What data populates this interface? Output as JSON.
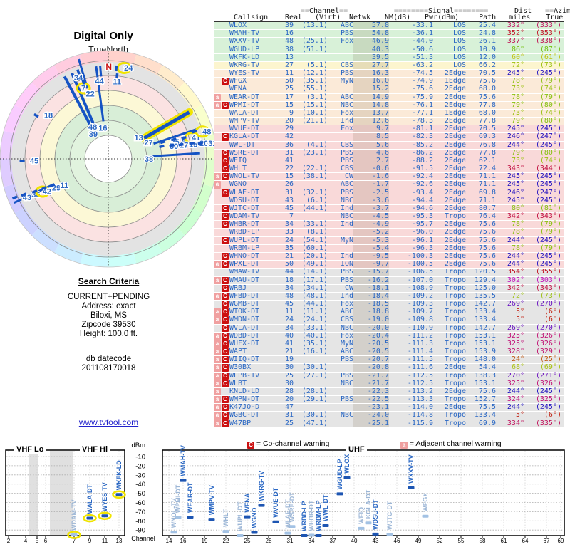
{
  "radar": {
    "title": "Digital Only",
    "north_label": "TrueNorth",
    "north_letter": "N"
  },
  "criteria": {
    "heading": "Search Criteria",
    "lines": [
      "CURRENT+PENDING",
      "Address: exact",
      "Biloxi, MS",
      "Zipcode 39530",
      "Height: 100.0 ft."
    ],
    "db_label": "db datecode",
    "db_value": "201108170018"
  },
  "link": "www.tvfool.com",
  "legend": {
    "co_badge": "C",
    "co_text": "= Co-channel warning",
    "adj_badge": "a",
    "adj_text": "= Adjacent channel warning"
  },
  "colors": {
    "accent_blue": "#2b68c4",
    "bar_blue": "#1d55b2",
    "pale_blue": "#a3c2e4",
    "pale_label": "#9cb6d6",
    "yellow_hl": "#f0e400",
    "warn_red": "#cc1111",
    "warn_pink": "#f0a0a0",
    "link_blue": "#2222cc",
    "line_blue": "#1553c4"
  },
  "table": {
    "header1": {
      "channel_eq": "==",
      "channel": "Channel",
      "channel_eq2": "==",
      "signal_eq": "========",
      "signal": "Signal",
      "signal_eq2": "========",
      "dist": "Dist",
      "azimuth_eq": "==",
      "azimuth": "Azimuth",
      "azimuth_eq2": "=="
    },
    "header2": {
      "callsign": "Callsign",
      "real": "Real",
      "virt": "(Virt)",
      "netwk": "Netwk",
      "nm": "NM(dB)",
      "pwr": "Pwr(dBm)",
      "path": "Path",
      "miles": "miles",
      "true": "True",
      "magn": "(Magn)"
    },
    "rows": [
      [
        "",
        "WLOX",
        39,
        "(13.1)",
        "ABC",
        57.8,
        -33.1,
        "LOS",
        25.4,
        332,
        333
      ],
      [
        "",
        "WMAH-TV",
        16,
        "",
        "PBS",
        54.8,
        -36.1,
        "LOS",
        24.8,
        352,
        353
      ],
      [
        "",
        "WXXV-TV",
        48,
        "(25.1)",
        "Fox",
        46.9,
        -44.0,
        "LOS",
        26.1,
        337,
        338
      ],
      [
        "",
        "WGUD-LP",
        38,
        "(51.1)",
        "",
        40.3,
        -50.6,
        "LOS",
        10.9,
        86,
        87
      ],
      [
        "",
        "WKFK-LD",
        13,
        "",
        "",
        39.5,
        -51.3,
        "LOS",
        12.0,
        60,
        61
      ],
      [
        "",
        "WKRG-TV",
        27,
        "(5.1)",
        "CBS",
        27.7,
        -63.2,
        "LOS",
        66.2,
        72,
        73
      ],
      [
        "",
        "WYES-TV",
        11,
        "(12.1)",
        "PBS",
        16.3,
        -74.5,
        "2Edge",
        70.5,
        245,
        245
      ],
      [
        "C",
        "WFGX",
        50,
        "(35.1)",
        "MyN",
        16.0,
        -74.9,
        "1Edge",
        75.6,
        78,
        79
      ],
      [
        "",
        "WFNA",
        25,
        "(55.1)",
        "",
        15.2,
        -75.6,
        "2Edge",
        68.0,
        73,
        74
      ],
      [
        "a",
        "WEAR-DT",
        17,
        "(3.1)",
        "ABC",
        14.9,
        -75.9,
        "2Edge",
        75.6,
        78,
        79
      ],
      [
        "aC",
        "WPMI-DT",
        15,
        "(15.1)",
        "NBC",
        14.8,
        -76.1,
        "2Edge",
        77.8,
        79,
        80
      ],
      [
        "",
        "WALA-DT",
        9,
        "(10.1)",
        "Fox",
        13.7,
        -77.1,
        "1Edge",
        68.0,
        73,
        74
      ],
      [
        "",
        "WMPV-TV",
        20,
        "(21.1)",
        "Ind",
        12.6,
        -78.3,
        "2Edge",
        77.8,
        79,
        80
      ],
      [
        "",
        "WVUE-DT",
        29,
        "",
        "Fox",
        9.7,
        -81.1,
        "2Edge",
        70.5,
        245,
        245
      ],
      [
        "C",
        "KGLA-DT",
        42,
        "",
        "",
        8.5,
        -82.3,
        "2Edge",
        69.3,
        246,
        247
      ],
      [
        "",
        "WWL-DT",
        36,
        "(4.1)",
        "CBS",
        5.6,
        -85.2,
        "2Edge",
        76.8,
        244,
        245
      ],
      [
        "C",
        "WSRE-DT",
        31,
        "(23.1)",
        "PBS",
        4.6,
        -86.2,
        "2Edge",
        77.8,
        79,
        80
      ],
      [
        "C",
        "WEIQ",
        41,
        "",
        "PBS",
        2.7,
        -88.2,
        "2Edge",
        62.1,
        73,
        74
      ],
      [
        "C",
        "WHLT",
        22,
        "(22.1)",
        "CBS",
        -0.6,
        -91.5,
        "2Edge",
        72.4,
        343,
        344
      ],
      [
        "aC",
        "WNOL-TV",
        15,
        "(38.1)",
        "CW",
        -1.6,
        -92.4,
        "2Edge",
        71.1,
        245,
        245
      ],
      [
        "a",
        "WGNO",
        26,
        "",
        "ABC",
        -1.7,
        -92.6,
        "2Edge",
        71.1,
        245,
        245
      ],
      [
        "C",
        "WLAE-DT",
        31,
        "(32.1)",
        "PBS",
        -2.5,
        -93.4,
        "2Edge",
        69.8,
        246,
        247
      ],
      [
        "",
        "WDSU-DT",
        43,
        "(6.1)",
        "NBC",
        -3.6,
        -94.4,
        "2Edge",
        71.1,
        245,
        245
      ],
      [
        "C",
        "WJTC-DT",
        45,
        "(44.1)",
        "Ind",
        -3.7,
        -94.6,
        "2Edge",
        80.7,
        80,
        81
      ],
      [
        "C",
        "WDAM-TV",
        7,
        "",
        "NBC",
        -4.5,
        -95.3,
        "Tropo",
        76.4,
        342,
        343
      ],
      [
        "C",
        "WHBR-DT",
        34,
        "(33.1)",
        "Ind",
        -4.9,
        -95.7,
        "2Edge",
        75.6,
        78,
        79
      ],
      [
        "",
        "WRBD-LP",
        33,
        "(8.1)",
        "",
        -5.2,
        -96.0,
        "2Edge",
        75.6,
        78,
        79
      ],
      [
        "C",
        "WUPL-DT",
        24,
        "(54.1)",
        "MyN",
        -5.3,
        -96.1,
        "2Edge",
        75.6,
        244,
        245
      ],
      [
        "",
        "WRBM-LP",
        35,
        "(60.1)",
        "",
        -5.4,
        -96.3,
        "2Edge",
        75.6,
        78,
        79
      ],
      [
        "C",
        "WHNO-DT",
        21,
        "(20.1)",
        "Ind",
        -9.5,
        -100.3,
        "2Edge",
        75.6,
        244,
        245
      ],
      [
        "aC",
        "WPXL-DT",
        50,
        "(49.1)",
        "ION",
        -9.7,
        -100.5,
        "2Edge",
        75.6,
        244,
        245
      ],
      [
        "",
        "WMAW-TV",
        44,
        "(14.1)",
        "PBS",
        -15.7,
        -106.5,
        "Tropo",
        120.5,
        354,
        355
      ],
      [
        "aC",
        "WMAU-DT",
        18,
        "(17.1)",
        "PBS",
        -16.2,
        -107.0,
        "Tropo",
        129.4,
        302,
        303
      ],
      [
        "C",
        "WRBJ",
        34,
        "(34.1)",
        "CW",
        -18.1,
        -108.9,
        "Tropo",
        125.0,
        342,
        343
      ],
      [
        "aC",
        "WFBD-DT",
        48,
        "(48.1)",
        "Ind",
        -18.4,
        -109.2,
        "Tropo",
        135.5,
        72,
        73
      ],
      [
        "C",
        "WGMB-DT",
        45,
        "(44.1)",
        "Fox",
        -18.5,
        -109.3,
        "Tropo",
        142.7,
        269,
        270
      ],
      [
        "aC",
        "WTOK-DT",
        11,
        "(11.1)",
        "ABC",
        -18.8,
        -109.7,
        "Tropo",
        133.4,
        5,
        6
      ],
      [
        "aC",
        "WMDN-DT",
        24,
        "(24.1)",
        "CBS",
        -19.0,
        -109.8,
        "Tropo",
        133.4,
        5,
        6
      ],
      [
        "C",
        "WVLA-DT",
        34,
        "(33.1)",
        "NBC",
        -20.0,
        -110.9,
        "Tropo",
        142.7,
        269,
        270
      ],
      [
        "aC",
        "WDBD-DT",
        40,
        "(40.1)",
        "Fox",
        -20.4,
        -111.2,
        "Tropo",
        153.1,
        325,
        326
      ],
      [
        "aC",
        "WUFX-DT",
        41,
        "(35.1)",
        "MyN",
        -20.5,
        -111.3,
        "Tropo",
        153.1,
        325,
        326
      ],
      [
        "aC",
        "WAPT",
        21,
        "(16.1)",
        "ABC",
        -20.5,
        -111.4,
        "Tropo",
        153.9,
        328,
        329
      ],
      [
        "aC",
        "WIIQ-DT",
        19,
        "",
        "PBS",
        -20.7,
        -111.5,
        "Tropo",
        148.0,
        24,
        25
      ],
      [
        "aC",
        "W30BX",
        30,
        "(30.1)",
        "",
        -20.8,
        -111.6,
        "2Edge",
        54.4,
        68,
        69
      ],
      [
        "aC",
        "WLPB-TV",
        25,
        "(27.1)",
        "PBS",
        -21.7,
        -112.5,
        "Tropo",
        138.3,
        270,
        271
      ],
      [
        "aC",
        "WLBT",
        30,
        "",
        "NBC",
        -21.7,
        -112.5,
        "Tropo",
        153.1,
        325,
        326
      ],
      [
        "a",
        "KNLD-LD",
        28,
        "(28.1)",
        "",
        -22.3,
        -113.2,
        "2Edge",
        75.6,
        244,
        245
      ],
      [
        "aC",
        "WMPN-DT",
        20,
        "(29.1)",
        "PBS",
        -22.5,
        -113.3,
        "Tropo",
        152.7,
        324,
        325
      ],
      [
        "aC",
        "K47JO-D",
        47,
        "",
        "",
        -23.1,
        -114.0,
        "2Edge",
        75.5,
        244,
        245
      ],
      [
        "aC",
        "WGBC-DT",
        31,
        "(30.1)",
        "NBC",
        -24.0,
        -114.8,
        "Tropo",
        133.4,
        5,
        6
      ],
      [
        "aC",
        "W47BP",
        25,
        "(47.1)",
        "",
        -25.1,
        -115.9,
        "Tropo",
        69.9,
        334,
        335
      ]
    ]
  },
  "chart_data": {
    "radar": {
      "type": "polar-lines",
      "title": "Digital Only",
      "orientation_label": "TrueNorth",
      "lines": [
        {
          "ch": "39",
          "az": 332,
          "r1": 131,
          "r2": 50,
          "w": 4,
          "la": 329,
          "lr": 41
        },
        {
          "ch": "48",
          "az": 337,
          "r1": 131,
          "r2": 52,
          "w": 4,
          "la": 334,
          "lr": 50
        },
        {
          "ch": "16",
          "az": 352.5,
          "r1": 131,
          "r2": 53,
          "w": 3,
          "la": 350,
          "lr": 44
        },
        {
          "ch": "44",
          "az": 355,
          "r1": 131,
          "r2": 116,
          "w": 3,
          "la": 353.5,
          "lr": 110
        },
        {
          "ch": "13",
          "az": 60,
          "r1": 131,
          "r2": 58,
          "w": 5,
          "yellow": true,
          "la": 55,
          "lr": 52
        },
        {
          "ch": "27",
          "az": 71.5,
          "r1": 131,
          "r2": 67,
          "w": 3,
          "la": 68,
          "lr": 61
        },
        {
          "ch": "38",
          "az": 86.5,
          "r1": 129,
          "r2": 59,
          "w": 3,
          "la": 90,
          "lr": 57
        },
        {
          "ch": "22",
          "az": 343.5,
          "r1": 146,
          "r2": 103,
          "w": 3,
          "la": 344.5,
          "lr": 95
        },
        {
          "ch": "",
          "az": 245,
          "r1": 146,
          "r2": 84,
          "w": 3
        }
      ],
      "ticks": [
        {
          "ch": "34",
          "az": 341,
          "r": 129,
          "side": "n"
        },
        {
          "ch": "7",
          "az": 342,
          "r": 113,
          "side": "n",
          "yellow": true
        },
        {
          "ch": "24",
          "az": 5,
          "r": 128,
          "side": "e",
          "yellow": true
        },
        {
          "ch": "11",
          "az": 6,
          "r": 117,
          "side": "n"
        },
        {
          "ch": "45",
          "az": 268.5,
          "r": 121,
          "side": "e"
        },
        {
          "ch": "18",
          "az": 301,
          "r": 118,
          "side": "e"
        },
        {
          "ch": "25",
          "az": 73,
          "r": 80,
          "side": "e"
        },
        {
          "ch": "9",
          "az": 73.5,
          "r": 96,
          "side": "e"
        },
        {
          "ch": "41",
          "az": 74.5,
          "r": 110,
          "side": "e",
          "yellow": true
        },
        {
          "ch": "48",
          "az": 72.5,
          "r": 127,
          "side": "e",
          "yellow": true
        },
        {
          "ch": "50",
          "az": 77,
          "r": 77,
          "side": "e"
        },
        {
          "ch": "17",
          "az": 78,
          "r": 91,
          "side": "e"
        },
        {
          "ch": "15",
          "az": 79,
          "r": 104,
          "side": "e"
        },
        {
          "ch": "20",
          "az": 79.5,
          "r": 119,
          "side": "e"
        },
        {
          "ch": "31",
          "az": 80.5,
          "r": 131,
          "side": "e"
        },
        {
          "ch": "43",
          "az": 247.5,
          "r": 142,
          "side": "e"
        },
        {
          "ch": "36",
          "az": 247,
          "r": 129,
          "side": "e"
        },
        {
          "ch": "42",
          "az": 246,
          "r": 113,
          "side": "e",
          "yellow": true
        },
        {
          "ch": "29",
          "az": 245.5,
          "r": 99,
          "side": "e"
        },
        {
          "ch": "11",
          "az": 244.5,
          "r": 87,
          "side": "e"
        }
      ]
    },
    "dbm_ticks": [
      -10,
      -20,
      -30,
      -40,
      -50,
      -60,
      -70,
      -80,
      -90
    ],
    "ylabel": "dBm",
    "xlabel": "Channel",
    "vhf": {
      "type": "spectrum",
      "band_titles": [
        "VHF Lo",
        "VHF Hi"
      ],
      "xticks": [
        2,
        4,
        5,
        6,
        7,
        9,
        11,
        13
      ],
      "stations": [
        {
          "ch": 7,
          "call": "WDAM-TV",
          "pwr": -95.3,
          "pale": true,
          "hl": true
        },
        {
          "ch": 9,
          "call": "WALA-DT",
          "pwr": -77.1,
          "hl": true
        },
        {
          "ch": 11,
          "call": "WYES-TV",
          "pwr": -74.5,
          "hl": true
        },
        {
          "ch": 13,
          "call": "WKFK-LD",
          "pwr": -51.3,
          "hl": true
        }
      ]
    },
    "uhf": {
      "type": "spectrum",
      "title": "UHF",
      "xticks": [
        14,
        16,
        19,
        22,
        25,
        28,
        31,
        34,
        37,
        40,
        43,
        46,
        49,
        52,
        55,
        58,
        61,
        64,
        67,
        69
      ],
      "stations": [
        {
          "ch": 15,
          "call": "WPMI-DT",
          "pwr": -76.1,
          "pale": true,
          "dx": 3
        },
        {
          "ch": 15,
          "call": "WNOL-TV",
          "pwr": -92.4,
          "pale": true,
          "dx": -3
        },
        {
          "ch": 16,
          "call": "WMAH-TV",
          "pwr": -36.1
        },
        {
          "ch": 17,
          "call": "WEAR-DT",
          "pwr": -75.9
        },
        {
          "ch": 20,
          "call": "WMPV-TV",
          "pwr": -78.3
        },
        {
          "ch": 22,
          "call": "WHLT",
          "pwr": -91.5,
          "pale": true
        },
        {
          "ch": 24,
          "call": "WUPL-DT",
          "pwr": -96.1,
          "pale": true
        },
        {
          "ch": 25,
          "call": "WFNA",
          "pwr": -75.6
        },
        {
          "ch": 26,
          "call": "WGNO",
          "pwr": -92.6
        },
        {
          "ch": 27,
          "call": "WKRG-TV",
          "pwr": -63.2
        },
        {
          "ch": 29,
          "call": "WVUE-DT",
          "pwr": -81.1
        },
        {
          "ch": 31,
          "call": "WSRE-DT",
          "pwr": -86.2,
          "pale": true,
          "dx": 3
        },
        {
          "ch": 31,
          "call": "WLAE-DT",
          "pwr": -93.4,
          "pale": true,
          "dx": -3
        },
        {
          "ch": 33,
          "call": "WRBD-LP",
          "pwr": -96.0
        },
        {
          "ch": 34,
          "call": "WHBR-DT",
          "pwr": -95.7,
          "pale": true
        },
        {
          "ch": 35,
          "call": "WRBM-LP",
          "pwr": -96.3
        },
        {
          "ch": 36,
          "call": "WWL-DT",
          "pwr": -85.2
        },
        {
          "ch": 38,
          "call": "WGUD-LP",
          "pwr": -50.6
        },
        {
          "ch": 39,
          "call": "WLOX",
          "pwr": -33.1
        },
        {
          "ch": 41,
          "call": "WEIQ",
          "pwr": -88.2,
          "pale": true
        },
        {
          "ch": 42,
          "call": "KGLA-DT",
          "pwr": -82.3,
          "pale": true
        },
        {
          "ch": 43,
          "call": "WDSU-DT",
          "pwr": -94.4
        },
        {
          "ch": 45,
          "call": "WJTC-DT",
          "pwr": -94.6,
          "pale": true
        },
        {
          "ch": 48,
          "call": "WXXV-TV",
          "pwr": -44.0
        },
        {
          "ch": 50,
          "call": "WFGX",
          "pwr": -74.9,
          "pale": true
        }
      ]
    }
  }
}
